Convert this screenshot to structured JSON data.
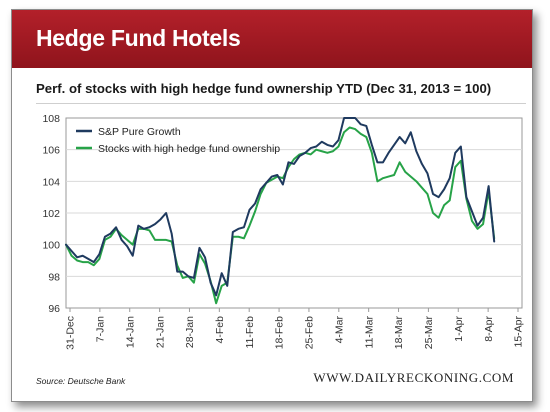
{
  "banner": {
    "title": "Hedge Fund Hotels"
  },
  "chart_data": {
    "type": "line",
    "title": "Perf. of stocks with high hedge fund ownership YTD (Dec 31, 2013 = 100)",
    "xlabel": "",
    "ylabel": "",
    "ylim": [
      96,
      108
    ],
    "yticks": [
      96,
      98,
      100,
      102,
      104,
      106,
      108
    ],
    "xticks": [
      "31-Dec",
      "7-Jan",
      "14-Jan",
      "21-Jan",
      "28-Jan",
      "4-Feb",
      "11-Feb",
      "18-Feb",
      "25-Feb",
      "4-Mar",
      "11-Mar",
      "18-Mar",
      "25-Mar",
      "1-Apr",
      "8-Apr",
      "15-Apr"
    ],
    "grid": true,
    "legend_position": "top-left",
    "series": [
      {
        "name": "S&P Pure Growth",
        "color": "#1f3a5f",
        "points": [
          [
            0,
            100
          ],
          [
            1,
            99.6
          ],
          [
            2,
            99.2
          ],
          [
            3,
            99.3
          ],
          [
            4,
            99.1
          ],
          [
            5,
            98.9
          ],
          [
            6,
            99.4
          ],
          [
            7,
            100.5
          ],
          [
            8,
            100.7
          ],
          [
            9,
            101.1
          ],
          [
            10,
            100.3
          ],
          [
            11,
            99.9
          ],
          [
            12,
            99.3
          ],
          [
            13,
            101.2
          ],
          [
            14,
            101.0
          ],
          [
            15,
            101.1
          ],
          [
            16,
            101.3
          ],
          [
            17,
            101.6
          ],
          [
            18,
            102.0
          ],
          [
            19,
            100.7
          ],
          [
            20,
            98.3
          ],
          [
            21,
            98.3
          ],
          [
            22,
            98.0
          ],
          [
            23,
            97.9
          ],
          [
            24,
            99.8
          ],
          [
            25,
            99.2
          ],
          [
            26,
            97.6
          ],
          [
            27,
            96.8
          ],
          [
            28,
            98.2
          ],
          [
            29,
            97.4
          ],
          [
            30,
            100.8
          ],
          [
            31,
            101.0
          ],
          [
            32,
            101.1
          ],
          [
            33,
            102.2
          ],
          [
            34,
            102.6
          ],
          [
            35,
            103.5
          ],
          [
            36,
            103.9
          ],
          [
            37,
            104.3
          ],
          [
            38,
            104.4
          ],
          [
            39,
            103.8
          ],
          [
            40,
            105.2
          ],
          [
            41,
            105.1
          ],
          [
            42,
            105.6
          ],
          [
            43,
            105.8
          ],
          [
            44,
            106.1
          ],
          [
            45,
            106.2
          ],
          [
            46,
            106.5
          ],
          [
            47,
            106.3
          ],
          [
            48,
            106.2
          ],
          [
            49,
            106.6
          ],
          [
            50,
            108.0
          ],
          [
            51,
            108.0
          ],
          [
            52,
            108.0
          ],
          [
            53,
            107.6
          ],
          [
            54,
            107.5
          ],
          [
            55,
            106.3
          ],
          [
            56,
            105.2
          ],
          [
            57,
            105.2
          ],
          [
            58,
            105.8
          ],
          [
            59,
            106.3
          ],
          [
            60,
            106.8
          ],
          [
            61,
            106.4
          ],
          [
            62,
            107.1
          ],
          [
            63,
            105.9
          ],
          [
            64,
            105.1
          ],
          [
            65,
            104.5
          ],
          [
            66,
            103.2
          ],
          [
            67,
            103.0
          ],
          [
            68,
            103.5
          ],
          [
            69,
            104.2
          ],
          [
            70,
            105.8
          ],
          [
            71,
            106.2
          ],
          [
            72,
            103.0
          ],
          [
            73,
            102.1
          ],
          [
            74,
            101.2
          ],
          [
            75,
            101.7
          ],
          [
            76,
            103.7
          ],
          [
            77,
            100.2
          ]
        ]
      },
      {
        "name": "Stocks with high hedge fund ownership",
        "color": "#27a348",
        "points": [
          [
            0,
            100
          ],
          [
            1,
            99.3
          ],
          [
            2,
            99.0
          ],
          [
            3,
            98.9
          ],
          [
            4,
            98.9
          ],
          [
            5,
            98.7
          ],
          [
            6,
            99.1
          ],
          [
            7,
            100.3
          ],
          [
            8,
            100.5
          ],
          [
            9,
            101.0
          ],
          [
            10,
            100.6
          ],
          [
            11,
            100.3
          ],
          [
            12,
            100.0
          ],
          [
            13,
            101.0
          ],
          [
            14,
            101.0
          ],
          [
            15,
            100.9
          ],
          [
            16,
            100.3
          ],
          [
            17,
            100.3
          ],
          [
            18,
            100.3
          ],
          [
            19,
            100.2
          ],
          [
            20,
            98.7
          ],
          [
            21,
            97.9
          ],
          [
            22,
            98.0
          ],
          [
            23,
            97.6
          ],
          [
            24,
            99.4
          ],
          [
            25,
            98.8
          ],
          [
            26,
            97.7
          ],
          [
            27,
            96.3
          ],
          [
            28,
            97.4
          ],
          [
            29,
            97.6
          ],
          [
            30,
            100.5
          ],
          [
            31,
            100.5
          ],
          [
            32,
            100.4
          ],
          [
            33,
            101.2
          ],
          [
            34,
            102.1
          ],
          [
            35,
            103.2
          ],
          [
            36,
            103.9
          ],
          [
            37,
            104.1
          ],
          [
            38,
            104.3
          ],
          [
            39,
            104.2
          ],
          [
            40,
            104.9
          ],
          [
            41,
            105.4
          ],
          [
            42,
            105.7
          ],
          [
            43,
            105.8
          ],
          [
            44,
            105.7
          ],
          [
            45,
            106.0
          ],
          [
            46,
            105.9
          ],
          [
            47,
            105.8
          ],
          [
            48,
            105.9
          ],
          [
            49,
            106.2
          ],
          [
            50,
            107.1
          ],
          [
            51,
            107.4
          ],
          [
            52,
            107.3
          ],
          [
            53,
            107.0
          ],
          [
            54,
            106.8
          ],
          [
            55,
            105.8
          ],
          [
            56,
            104.0
          ],
          [
            57,
            104.2
          ],
          [
            58,
            104.3
          ],
          [
            59,
            104.4
          ],
          [
            60,
            105.2
          ],
          [
            61,
            104.6
          ],
          [
            62,
            104.3
          ],
          [
            63,
            104.0
          ],
          [
            64,
            103.6
          ],
          [
            65,
            103.2
          ],
          [
            66,
            102.0
          ],
          [
            67,
            101.7
          ],
          [
            68,
            102.5
          ],
          [
            69,
            102.8
          ],
          [
            70,
            104.9
          ],
          [
            71,
            105.3
          ],
          [
            72,
            102.9
          ],
          [
            73,
            101.5
          ],
          [
            74,
            101.0
          ],
          [
            75,
            101.3
          ],
          [
            76,
            103.4
          ],
          [
            77,
            100.4
          ]
        ]
      }
    ],
    "x_domain": [
      0,
      82
    ]
  },
  "footer": {
    "source": "Source: Deutsche Bank",
    "site": "WWW.DAILYRECKONING.COM"
  }
}
